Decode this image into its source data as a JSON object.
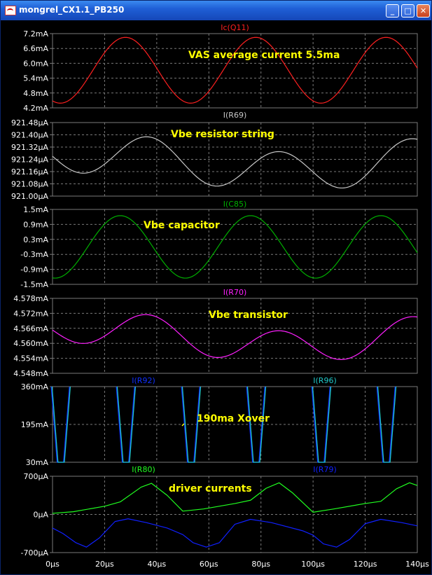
{
  "window": {
    "title": "mongrel_CX1.1_PB250",
    "icon": "ltspice-waveform-icon",
    "min_glyph": "_",
    "max_glyph": "□",
    "close_glyph": "✕"
  },
  "colors": {
    "background": "#000000",
    "grid": "#7a7a7a",
    "tick_text": "#ffffff",
    "annotation": "#ffff00"
  },
  "chart_data": [
    {
      "type": "line",
      "pane": "Ic(Q11)",
      "series": [
        {
          "name": "Ic(Q11)",
          "color": "#ff2020",
          "kind": "sine",
          "offset": 5.72,
          "amp": 1.33,
          "period_us": 50,
          "peak_us": 28
        }
      ],
      "yticks": [
        "7.2mA",
        "6.6mA",
        "6.0mA",
        "5.4mA",
        "4.8mA",
        "4.2mA"
      ],
      "ylim": [
        4.2,
        7.2
      ],
      "annotation": "VAS  average current 5.5ma"
    },
    {
      "type": "line",
      "pane": "I(R69)",
      "series": [
        {
          "name": "I(R69)",
          "color": "#c8c8c8",
          "kind": "two-sine",
          "offset": 921.22,
          "amp1": 0.13,
          "period1_us": 50,
          "peak1_us": 37,
          "amp2": 0.06,
          "period2_us": 150,
          "peak2_us": 15
        }
      ],
      "yticks": [
        "921.48µA",
        "921.40µA",
        "921.32µA",
        "921.24µA",
        "921.16µA",
        "921.08µA",
        "921.00µA"
      ],
      "ylim": [
        921.0,
        921.48
      ],
      "annotation": "Vbe resistor string"
    },
    {
      "type": "line",
      "pane": "I(C85)",
      "series": [
        {
          "name": "I(C85)",
          "color": "#00b000",
          "kind": "sine",
          "offset": 0.0,
          "amp": 1.25,
          "period_us": 50,
          "peak_us": 26
        }
      ],
      "yticks": [
        "1.5mA",
        "0.9mA",
        "0.3mA",
        "-0.3mA",
        "-0.9mA",
        "-1.5mA"
      ],
      "ylim": [
        -1.5,
        1.5
      ],
      "annotation": "Vbe capacitor"
    },
    {
      "type": "line",
      "pane": "I(R70)",
      "series": [
        {
          "name": "I(R70)",
          "color": "#ff20ff",
          "kind": "two-sine",
          "offset": 4.5625,
          "amp1": 0.0065,
          "period1_us": 50,
          "peak1_us": 37,
          "amp2": 0.004,
          "period2_us": 150,
          "peak2_us": 15
        }
      ],
      "yticks": [
        "4.578mA",
        "4.572mA",
        "4.566mA",
        "4.560mA",
        "4.554mA",
        "4.548mA"
      ],
      "ylim": [
        4.548,
        4.578
      ],
      "annotation": "Vbe transistor"
    },
    {
      "type": "line",
      "pane": "I(R92) I(R96)",
      "series": [
        {
          "name": "I(R92)",
          "color": "#1030ff",
          "kind": "spikes",
          "centers_us": [
            3,
            28,
            53,
            78,
            103,
            128
          ],
          "halfwidth_us": 3.5
        },
        {
          "name": "I(R96)",
          "color": "#20c8c8",
          "kind": "spikes",
          "centers_us": [
            3,
            28,
            53,
            78,
            103,
            128
          ],
          "halfwidth_us": 3.5
        }
      ],
      "yticks": [
        "360mA",
        "195mA",
        "30mA"
      ],
      "ylim": [
        30,
        360
      ],
      "annotation": "190ma Xover"
    },
    {
      "type": "line",
      "pane": "I(R80) I(R79)",
      "series": [
        {
          "name": "I(R80)",
          "color": "#20ff20",
          "kind": "sawtooth-pos",
          "points": [
            [
              0,
              20
            ],
            [
              8,
              50
            ],
            [
              20,
              150
            ],
            [
              26,
              230
            ],
            [
              34,
              500
            ],
            [
              38,
              570
            ],
            [
              44,
              350
            ],
            [
              50,
              60
            ],
            [
              58,
              100
            ],
            [
              70,
              200
            ],
            [
              76,
              260
            ],
            [
              82,
              480
            ],
            [
              87,
              580
            ],
            [
              92,
              400
            ],
            [
              100,
              40
            ],
            [
              108,
              100
            ],
            [
              120,
              200
            ],
            [
              126,
              240
            ],
            [
              132,
              470
            ],
            [
              137,
              580
            ],
            [
              140,
              530
            ]
          ]
        },
        {
          "name": "I(R79)",
          "color": "#1020ff",
          "kind": "sawtooth-neg",
          "points": [
            [
              0,
              -250
            ],
            [
              4,
              -350
            ],
            [
              9,
              -520
            ],
            [
              13,
              -600
            ],
            [
              18,
              -430
            ],
            [
              24,
              -130
            ],
            [
              29,
              -80
            ],
            [
              36,
              -150
            ],
            [
              44,
              -250
            ],
            [
              50,
              -370
            ],
            [
              54,
              -520
            ],
            [
              59,
              -600
            ],
            [
              64,
              -520
            ],
            [
              70,
              -180
            ],
            [
              76,
              -90
            ],
            [
              84,
              -150
            ],
            [
              96,
              -300
            ],
            [
              100,
              -380
            ],
            [
              104,
              -540
            ],
            [
              109,
              -600
            ],
            [
              114,
              -460
            ],
            [
              120,
              -170
            ],
            [
              126,
              -90
            ],
            [
              134,
              -150
            ],
            [
              140,
              -210
            ]
          ]
        }
      ],
      "yticks": [
        "700µA",
        "0µA",
        "-700µA"
      ],
      "ylim": [
        -700,
        700
      ],
      "annotation": "driver currents"
    }
  ],
  "xaxis": {
    "xlim": [
      0,
      140
    ],
    "ticks": [
      "0µs",
      "20µs",
      "40µs",
      "60µs",
      "80µs",
      "100µs",
      "120µs",
      "140µs"
    ],
    "tick_values": [
      0,
      20,
      40,
      60,
      80,
      100,
      120,
      140
    ]
  }
}
